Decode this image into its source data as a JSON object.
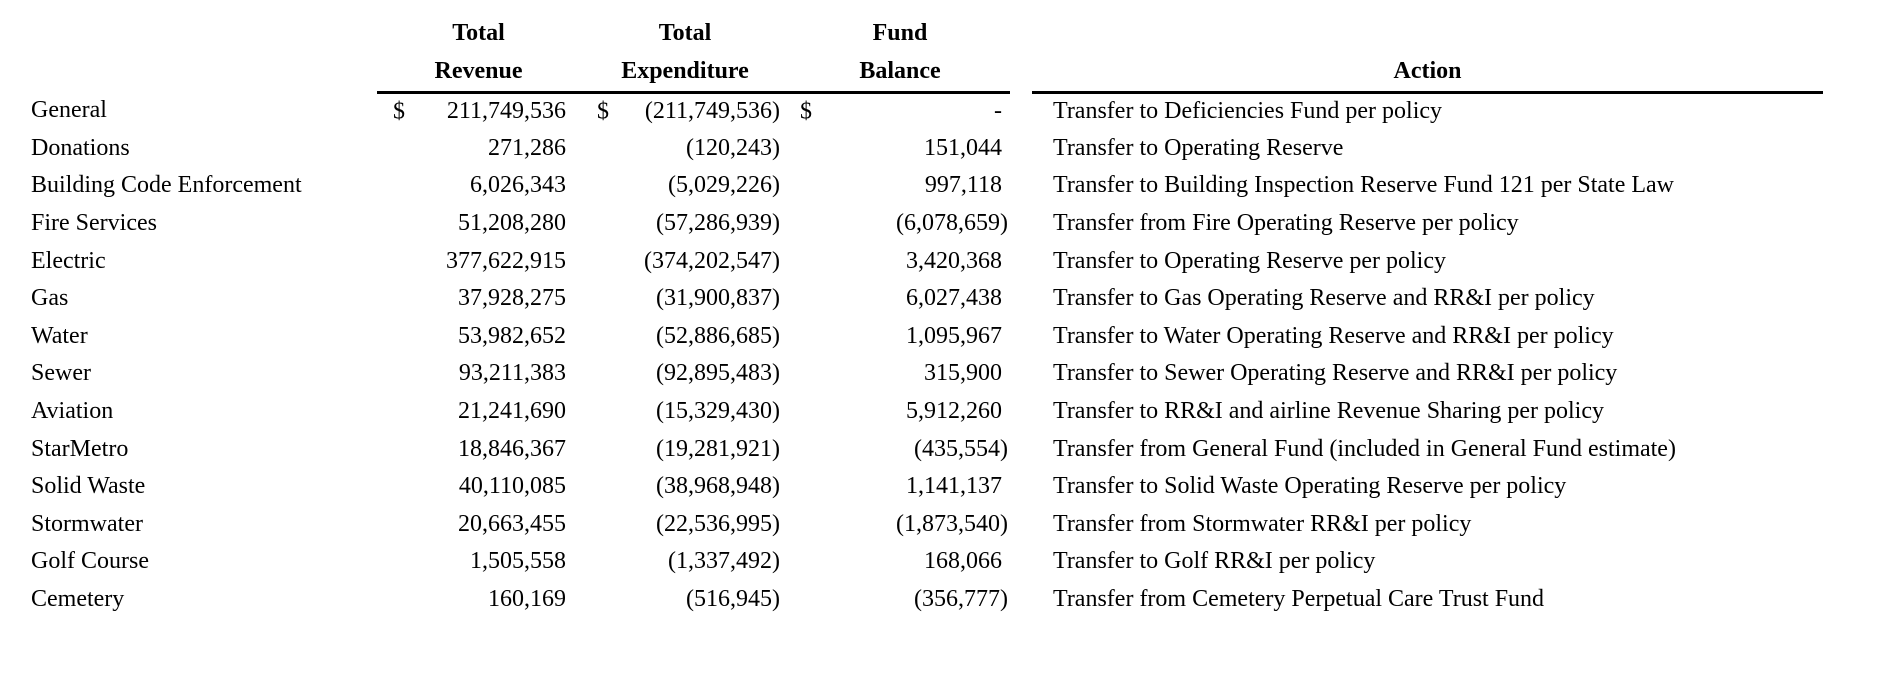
{
  "table": {
    "headers": {
      "revenue_line1": "Total",
      "revenue_line2": "Revenue",
      "expenditure_line1": "Total",
      "expenditure_line2": "Expenditure",
      "balance_line1": "Fund",
      "balance_line2": "Balance",
      "action": "Action"
    },
    "rows": [
      {
        "name": "General",
        "revenue_currency": "$",
        "revenue": "211,749,536",
        "expenditure_currency": "$",
        "expenditure": "(211,749,536)",
        "balance_currency": "$",
        "balance": "- ",
        "action": "Transfer to Deficiencies Fund per policy"
      },
      {
        "name": "Donations",
        "revenue_currency": "",
        "revenue": "271,286",
        "expenditure_currency": "",
        "expenditure": "(120,243)",
        "balance_currency": "",
        "balance": "151,044 ",
        "action": "Transfer to Operating Reserve"
      },
      {
        "name": "Building Code Enforcement",
        "revenue_currency": "",
        "revenue": "6,026,343",
        "expenditure_currency": "",
        "expenditure": "(5,029,226)",
        "balance_currency": "",
        "balance": "997,118 ",
        "action": "Transfer to Building Inspection Reserve Fund 121 per State Law"
      },
      {
        "name": "Fire Services",
        "revenue_currency": "",
        "revenue": "51,208,280",
        "expenditure_currency": "",
        "expenditure": "(57,286,939)",
        "balance_currency": "",
        "balance": "(6,078,659)",
        "action": "Transfer from Fire Operating Reserve per policy"
      },
      {
        "name": "Electric",
        "revenue_currency": "",
        "revenue": "377,622,915",
        "expenditure_currency": "",
        "expenditure": "(374,202,547)",
        "balance_currency": "",
        "balance": "3,420,368 ",
        "action": "Transfer to Operating Reserve per policy"
      },
      {
        "name": "Gas",
        "revenue_currency": "",
        "revenue": "37,928,275",
        "expenditure_currency": "",
        "expenditure": "(31,900,837)",
        "balance_currency": "",
        "balance": "6,027,438 ",
        "action": "Transfer to Gas Operating Reserve and RR&I per policy"
      },
      {
        "name": "Water",
        "revenue_currency": "",
        "revenue": "53,982,652",
        "expenditure_currency": "",
        "expenditure": "(52,886,685)",
        "balance_currency": "",
        "balance": "1,095,967 ",
        "action": "Transfer to Water Operating Reserve and RR&I per policy"
      },
      {
        "name": "Sewer",
        "revenue_currency": "",
        "revenue": "93,211,383",
        "expenditure_currency": "",
        "expenditure": "(92,895,483)",
        "balance_currency": "",
        "balance": "315,900 ",
        "action": "Transfer to Sewer Operating Reserve and RR&I per policy"
      },
      {
        "name": "Aviation",
        "revenue_currency": "",
        "revenue": "21,241,690",
        "expenditure_currency": "",
        "expenditure": "(15,329,430)",
        "balance_currency": "",
        "balance": "5,912,260 ",
        "action": "Transfer to RR&I and airline Revenue Sharing per policy"
      },
      {
        "name": "StarMetro",
        "revenue_currency": "",
        "revenue": "18,846,367",
        "expenditure_currency": "",
        "expenditure": "(19,281,921)",
        "balance_currency": "",
        "balance": "(435,554)",
        "action": "Transfer from General Fund (included in General Fund estimate)"
      },
      {
        "name": "Solid Waste",
        "revenue_currency": "",
        "revenue": "40,110,085",
        "expenditure_currency": "",
        "expenditure": "(38,968,948)",
        "balance_currency": "",
        "balance": "1,141,137 ",
        "action": "Transfer to Solid Waste Operating Reserve per policy"
      },
      {
        "name": "Stormwater",
        "revenue_currency": "",
        "revenue": "20,663,455",
        "expenditure_currency": "",
        "expenditure": "(22,536,995)",
        "balance_currency": "",
        "balance": "(1,873,540)",
        "action": "Transfer from Stormwater RR&I per policy"
      },
      {
        "name": "Golf Course",
        "revenue_currency": "",
        "revenue": "1,505,558",
        "expenditure_currency": "",
        "expenditure": "(1,337,492)",
        "balance_currency": "",
        "balance": "168,066 ",
        "action": "Transfer to Golf RR&I per policy"
      },
      {
        "name": "Cemetery",
        "revenue_currency": "",
        "revenue": "160,169",
        "expenditure_currency": "",
        "expenditure": "(516,945)",
        "balance_currency": "",
        "balance": "(356,777)",
        "action": "Transfer from Cemetery Perpetual Care Trust Fund"
      }
    ]
  },
  "colors": {
    "text": "#000000",
    "background": "#ffffff",
    "rule": "#000000"
  }
}
